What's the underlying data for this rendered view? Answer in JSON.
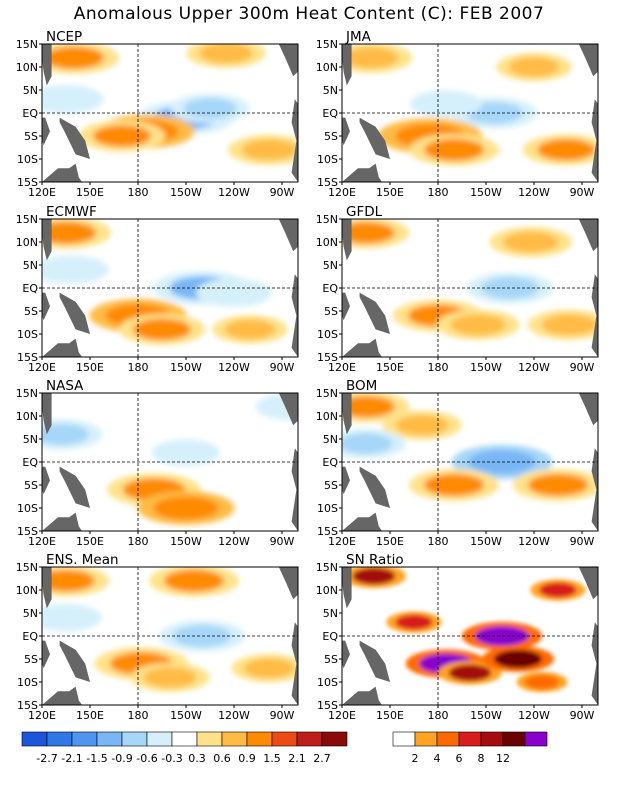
{
  "title": "Anomalous Upper 300m Heat Content (C): FEB 2007",
  "x_ticks": [
    "120E",
    "150E",
    "180",
    "150W",
    "120W",
    "90W"
  ],
  "y_ticks": [
    "15N",
    "10N",
    "5N",
    "EQ",
    "5S",
    "10S",
    "15S"
  ],
  "colors": {
    "land": "#666666",
    "anomaly_scale": [
      "#1c55d9",
      "#2f77e6",
      "#4e95ef",
      "#79b6f5",
      "#a6d6f8",
      "#d5f0fb",
      "#ffffff",
      "#ffe28a",
      "#ffbb44",
      "#fe8a00",
      "#ec4c13",
      "#bf1c1c",
      "#8a0a0a",
      "#7b00cc"
    ],
    "snr_scale": [
      "#ffffff",
      "#ffa320",
      "#ff6a00",
      "#d81b1b",
      "#a30d0d",
      "#6a0202",
      "#8a00cc"
    ]
  },
  "colorbars": {
    "anomaly_labels": [
      "-2.7",
      "-2.1",
      "-1.5",
      "-0.9",
      "-0.6",
      "-0.3",
      "0.3",
      "0.6",
      "0.9",
      "1.5",
      "2.1",
      "2.7"
    ],
    "snr_labels": [
      "2",
      "4",
      "6",
      "8",
      "12"
    ]
  },
  "chart_data": [
    {
      "type": "heatmap",
      "name": "NCEP",
      "title": "NCEP",
      "x_range": [
        "120E",
        "80W"
      ],
      "y_range": [
        "15S",
        "15N"
      ],
      "features": [
        {
          "lon": 210,
          "lat": -1,
          "value": -1.2
        },
        {
          "lon": 225,
          "lat": 1,
          "value": -0.7
        },
        {
          "lon": 185,
          "lat": -4,
          "value": 1.2
        },
        {
          "lon": 170,
          "lat": -5,
          "value": 0.9
        },
        {
          "lon": 262,
          "lat": -8,
          "value": 0.8
        },
        {
          "lon": 140,
          "lat": 12,
          "value": 1.0
        },
        {
          "lon": 235,
          "lat": 13,
          "value": 0.7
        },
        {
          "lon": 135,
          "lat": 3,
          "value": -0.6
        }
      ]
    },
    {
      "type": "heatmap",
      "name": "JMA",
      "title": "JMA",
      "x_range": [
        "120E",
        "80W"
      ],
      "y_range": [
        "15S",
        "15N"
      ],
      "features": [
        {
          "lon": 215,
          "lat": 0,
          "value": -0.9
        },
        {
          "lon": 185,
          "lat": 2,
          "value": -0.5
        },
        {
          "lon": 175,
          "lat": -5,
          "value": 1.4
        },
        {
          "lon": 190,
          "lat": -8,
          "value": 1.0
        },
        {
          "lon": 260,
          "lat": -8,
          "value": 0.9
        },
        {
          "lon": 138,
          "lat": 12,
          "value": 0.8
        },
        {
          "lon": 240,
          "lat": 10,
          "value": 0.6
        }
      ]
    },
    {
      "type": "heatmap",
      "name": "ECMWF",
      "title": "ECMWF",
      "x_range": [
        "120E",
        "80W"
      ],
      "y_range": [
        "15S",
        "15N"
      ],
      "features": [
        {
          "lon": 220,
          "lat": 0,
          "value": -1.2
        },
        {
          "lon": 240,
          "lat": -1,
          "value": -0.6
        },
        {
          "lon": 180,
          "lat": -6,
          "value": 1.2
        },
        {
          "lon": 195,
          "lat": -9,
          "value": 0.9
        },
        {
          "lon": 135,
          "lat": 12,
          "value": 1.0
        },
        {
          "lon": 138,
          "lat": 4,
          "value": -0.6
        },
        {
          "lon": 250,
          "lat": -9,
          "value": 0.6
        }
      ]
    },
    {
      "type": "heatmap",
      "name": "GFDL",
      "title": "GFDL",
      "x_range": [
        "120E",
        "80W"
      ],
      "y_range": [
        "15S",
        "15N"
      ],
      "features": [
        {
          "lon": 225,
          "lat": 0,
          "value": -0.9
        },
        {
          "lon": 180,
          "lat": -6,
          "value": 1.0
        },
        {
          "lon": 205,
          "lat": -8,
          "value": 0.8
        },
        {
          "lon": 262,
          "lat": -8,
          "value": 0.8
        },
        {
          "lon": 135,
          "lat": 12,
          "value": 0.9
        },
        {
          "lon": 238,
          "lat": 10,
          "value": 0.8
        }
      ]
    },
    {
      "type": "heatmap",
      "name": "NASA",
      "title": "NASA",
      "x_range": [
        "120E",
        "80W"
      ],
      "y_range": [
        "15S",
        "15N"
      ],
      "features": [
        {
          "lon": 190,
          "lat": -6,
          "value": 1.1
        },
        {
          "lon": 210,
          "lat": -10,
          "value": 1.2
        },
        {
          "lon": 132,
          "lat": 6,
          "value": -0.8
        },
        {
          "lon": 210,
          "lat": 2,
          "value": -0.4
        },
        {
          "lon": 275,
          "lat": 12,
          "value": -0.4
        }
      ]
    },
    {
      "type": "heatmap",
      "name": "BOM",
      "title": "BOM",
      "x_range": [
        "120E",
        "80W"
      ],
      "y_range": [
        "15S",
        "15N"
      ],
      "features": [
        {
          "lon": 220,
          "lat": 0,
          "value": -1.3
        },
        {
          "lon": 190,
          "lat": -5,
          "value": 1.0
        },
        {
          "lon": 255,
          "lat": -5,
          "value": 1.0
        },
        {
          "lon": 170,
          "lat": 8,
          "value": 0.7
        },
        {
          "lon": 135,
          "lat": 12,
          "value": 0.9
        },
        {
          "lon": 135,
          "lat": 4,
          "value": -0.7
        }
      ]
    },
    {
      "type": "heatmap",
      "name": "ENS. Mean",
      "title": "ENS. Mean",
      "x_range": [
        "120E",
        "80W"
      ],
      "y_range": [
        "15S",
        "15N"
      ],
      "features": [
        {
          "lon": 220,
          "lat": 0,
          "value": -0.9
        },
        {
          "lon": 182,
          "lat": -6,
          "value": 1.1
        },
        {
          "lon": 200,
          "lat": -9,
          "value": 0.7
        },
        {
          "lon": 262,
          "lat": -7,
          "value": 0.6
        },
        {
          "lon": 135,
          "lat": 12,
          "value": 0.9
        },
        {
          "lon": 135,
          "lat": 4,
          "value": -0.5
        },
        {
          "lon": 215,
          "lat": 12,
          "value": 1.0
        }
      ]
    },
    {
      "type": "heatmap",
      "name": "SN Ratio",
      "title": "SN Ratio",
      "x_range": [
        "120E",
        "80W"
      ],
      "y_range": [
        "15S",
        "15N"
      ],
      "features": [
        {
          "lon": 220,
          "lat": 0,
          "value": 12
        },
        {
          "lon": 185,
          "lat": -6,
          "value": 12
        },
        {
          "lon": 200,
          "lat": -8,
          "value": 8
        },
        {
          "lon": 230,
          "lat": -5,
          "value": 10
        },
        {
          "lon": 140,
          "lat": 13,
          "value": 8
        },
        {
          "lon": 165,
          "lat": 3,
          "value": 6
        },
        {
          "lon": 255,
          "lat": 10,
          "value": 6
        },
        {
          "lon": 245,
          "lat": -10,
          "value": 5
        }
      ]
    }
  ]
}
